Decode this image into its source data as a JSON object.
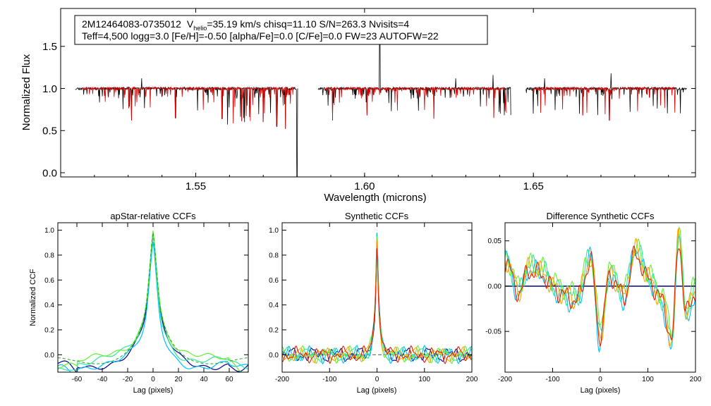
{
  "header": {
    "object_id": "2M12464083-0735012",
    "vhelio_label": "V",
    "vhelio_sub": "helio",
    "line1_rest": "=35.19 km/s  chisq=11.10  S/N=263.3  Nvisits=4",
    "line2": "Teff=4,500 logg=3.0 [Fe/H]=-0.50 [alpha/Fe]=0.0 [C/Fe]=0.0 FW=23 AUTOFW=22"
  },
  "colors": {
    "observed": "#000000",
    "model": "#dd0000",
    "zero_line": "#000080",
    "dashed": "#555555",
    "ccf": [
      "#00008b",
      "#00bfff",
      "#2ee6a0",
      "#66ee33",
      "#ffa500",
      "#dd2200"
    ]
  },
  "chart_data": [
    {
      "type": "line",
      "title": "",
      "xlabel": "Wavelength (microns)",
      "ylabel": "Normalized Flux",
      "xlim": [
        1.51,
        1.698
      ],
      "ylim": [
        -0.05,
        1.95
      ],
      "xticks": [
        "1.55",
        "1.60",
        "1.65"
      ],
      "xtick_values": [
        1.55,
        1.6,
        1.65
      ],
      "yticks": [
        "0.0",
        "0.5",
        "1.0",
        "1.5"
      ],
      "ytick_values": [
        0.0,
        0.5,
        1.0,
        1.5
      ],
      "series": [
        {
          "name": "observed spectrum",
          "segments": [
            [
              1.5143,
              1.5802
            ],
            [
              1.5862,
              1.6434
            ],
            [
              1.6478,
              1.6955
            ]
          ],
          "continuum": 1.0,
          "deep_lines": [
            {
              "x": 1.531,
              "y": 0.62
            },
            {
              "x": 1.544,
              "y": 0.65
            },
            {
              "x": 1.5578,
              "y": 0.64
            },
            {
              "x": 1.5636,
              "y": 0.61
            },
            {
              "x": 1.57,
              "y": 0.6
            },
            {
              "x": 1.574,
              "y": 0.55
            },
            {
              "x": 1.5766,
              "y": 0.52
            },
            {
              "x": 1.58,
              "y": -0.05
            },
            {
              "x": 1.5905,
              "y": 0.62
            },
            {
              "x": 1.6007,
              "y": 0.68
            },
            {
              "x": 1.6205,
              "y": 0.64
            },
            {
              "x": 1.6383,
              "y": 0.65
            },
            {
              "x": 1.6646,
              "y": 0.68
            },
            {
              "x": 1.6725,
              "y": 0.62
            }
          ],
          "spikes": [
            {
              "x": 1.534,
              "y": 1.12
            },
            {
              "x": 1.6045,
              "y": 1.72
            },
            {
              "x": 1.627,
              "y": 1.12
            },
            {
              "x": 1.638,
              "y": 1.16
            },
            {
              "x": 1.6533,
              "y": 1.12
            },
            {
              "x": 1.673,
              "y": 1.18
            }
          ]
        },
        {
          "name": "model spectrum",
          "segments": [
            [
              1.516,
              1.579
            ],
            [
              1.588,
              1.642
            ],
            [
              1.65,
              1.692
            ]
          ],
          "continuum": 1.0
        }
      ]
    },
    {
      "type": "line",
      "title": "apStar-relative CCFs",
      "xlabel": "Lag (pixels)",
      "ylabel": "Normalized CCF",
      "xlim": [
        -75,
        75
      ],
      "ylim": [
        -0.14,
        1.06
      ],
      "xticks": [
        "-60",
        "-40",
        "-20",
        "0",
        "20",
        "40",
        "60"
      ],
      "xtick_values": [
        -60,
        -40,
        -20,
        0,
        20,
        40,
        60
      ],
      "yticks": [
        "0.0",
        "0.2",
        "0.4",
        "0.6",
        "0.8",
        "1.0"
      ],
      "ytick_values": [
        0.0,
        0.2,
        0.4,
        0.6,
        0.8,
        1.0
      ],
      "peak": 1.0,
      "series": [
        {
          "name": "visit 1",
          "color_index": 0,
          "offset": 0.0
        },
        {
          "name": "visit 2",
          "color_index": 1,
          "offset": -0.02
        },
        {
          "name": "visit 3",
          "color_index": 2,
          "offset": 0.02
        },
        {
          "name": "visit 4",
          "color_index": 3,
          "offset": 0.04
        }
      ]
    },
    {
      "type": "line",
      "title": "Synthetic CCFs",
      "xlabel": "Lag (pixels)",
      "ylabel": "",
      "xlim": [
        -200,
        200
      ],
      "ylim": [
        -0.14,
        1.06
      ],
      "xticks": [
        "-200",
        "-100",
        "0",
        "100",
        "200"
      ],
      "xtick_values": [
        -200,
        -100,
        0,
        100,
        200
      ],
      "yticks": [
        "0.0",
        "0.2",
        "0.4",
        "0.6",
        "0.8",
        "1.0"
      ],
      "ytick_values": [
        0.0,
        0.2,
        0.4,
        0.6,
        0.8,
        1.0
      ],
      "peak": 1.0,
      "series": [
        {
          "name": "ccf 1",
          "color_index": 0
        },
        {
          "name": "ccf 2",
          "color_index": 1
        },
        {
          "name": "ccf 3",
          "color_index": 2
        },
        {
          "name": "ccf 4",
          "color_index": 3
        },
        {
          "name": "ccf 5",
          "color_index": 4
        },
        {
          "name": "ccf 6",
          "color_index": 5
        }
      ]
    },
    {
      "type": "line",
      "title": "Difference Synthetic CCFs",
      "xlabel": "Lag (pixels)",
      "ylabel": "",
      "xlim": [
        -200,
        200
      ],
      "ylim": [
        -0.095,
        0.07
      ],
      "xticks": [
        "-200",
        "-100",
        "0",
        "100",
        "200"
      ],
      "xtick_values": [
        -200,
        -100,
        0,
        100,
        200
      ],
      "yticks": [
        "-0.05",
        "0.00",
        "0.05"
      ],
      "ytick_values": [
        -0.05,
        0.0,
        0.05
      ],
      "anchors": {
        "x": [
          -200,
          -170,
          -150,
          -120,
          -100,
          -70,
          -50,
          -20,
          0,
          20,
          50,
          75,
          100,
          130,
          150,
          165,
          180,
          200
        ],
        "y": [
          0.03,
          -0.005,
          0.02,
          0.015,
          0.0,
          -0.01,
          -0.015,
          0.03,
          -0.055,
          0.015,
          -0.01,
          0.04,
          0.01,
          -0.015,
          -0.06,
          0.055,
          -0.03,
          -0.005
        ]
      },
      "series": [
        {
          "name": "diff 1",
          "color_index": 1,
          "scale": 1.15,
          "shift": -0.004
        },
        {
          "name": "diff 2",
          "color_index": 2,
          "scale": 1.05,
          "shift": 0.002
        },
        {
          "name": "diff 3",
          "color_index": 3,
          "scale": 0.9,
          "shift": 0.006
        },
        {
          "name": "diff 4",
          "color_index": 4,
          "scale": 1.0,
          "shift": 0.0
        },
        {
          "name": "diff 5",
          "color_index": 5,
          "scale": 0.95,
          "shift": -0.002
        }
      ]
    }
  ]
}
